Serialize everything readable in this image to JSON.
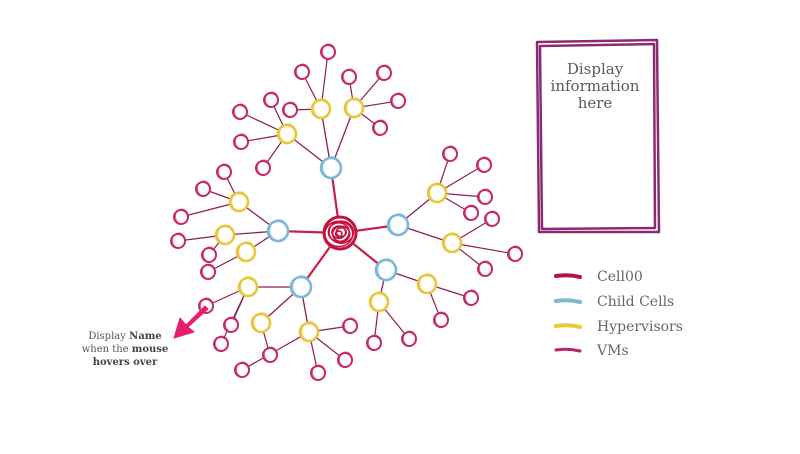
{
  "info_box": {
    "lines": [
      "Display",
      "information",
      "here"
    ]
  },
  "legend": {
    "items": [
      {
        "key": "cell00",
        "label": "Cell00",
        "color": "#b3124a"
      },
      {
        "key": "child",
        "label": "Child Cells",
        "color": "#79b9d6"
      },
      {
        "key": "hypervisor",
        "label": "Hypervisors",
        "color": "#e9c93c"
      },
      {
        "key": "vm",
        "label": "VMs",
        "color": "#b62566"
      }
    ]
  },
  "callout": {
    "line1_a": "Display ",
    "line1_b": "Name",
    "line2_a": "when the ",
    "line2_b": "mouse",
    "line3": "hovers over"
  },
  "colors": {
    "edge": "#8a1f5a",
    "core_edge": "#c81e4a",
    "vm_stroke": "#c4286a",
    "child_stroke": "#7ab8d8",
    "hyp_stroke": "#e8c63a",
    "root_stroke": "#c4123f",
    "info_border": "#8b2a74",
    "arrow": "#e6206e"
  }
}
